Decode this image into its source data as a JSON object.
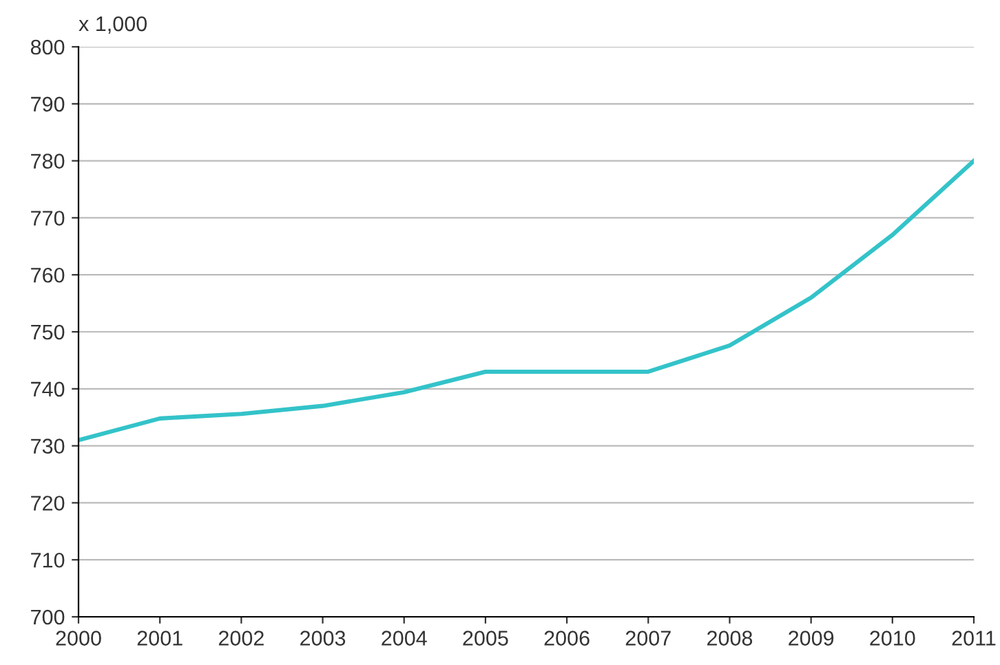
{
  "chart_data": {
    "type": "line",
    "ylabel": "x 1,000",
    "x": [
      2000,
      2001,
      2002,
      2003,
      2004,
      2005,
      2006,
      2007,
      2008,
      2009,
      2010,
      2011
    ],
    "series": [
      {
        "color": "#33c3c9",
        "values": [
          731,
          734.8,
          735.6,
          737,
          739.4,
          743,
          743,
          743,
          747.6,
          756,
          767,
          780
        ]
      }
    ],
    "xlim": [
      2000,
      2011
    ],
    "xticks": [
      2000,
      2001,
      2002,
      2003,
      2004,
      2005,
      2006,
      2007,
      2008,
      2009,
      2010,
      2011
    ],
    "ylim": [
      700,
      800
    ],
    "yticks": [
      700,
      710,
      720,
      730,
      740,
      750,
      760,
      770,
      780,
      790,
      800
    ],
    "grid": "y",
    "marker": "none",
    "line_style": "solid"
  }
}
